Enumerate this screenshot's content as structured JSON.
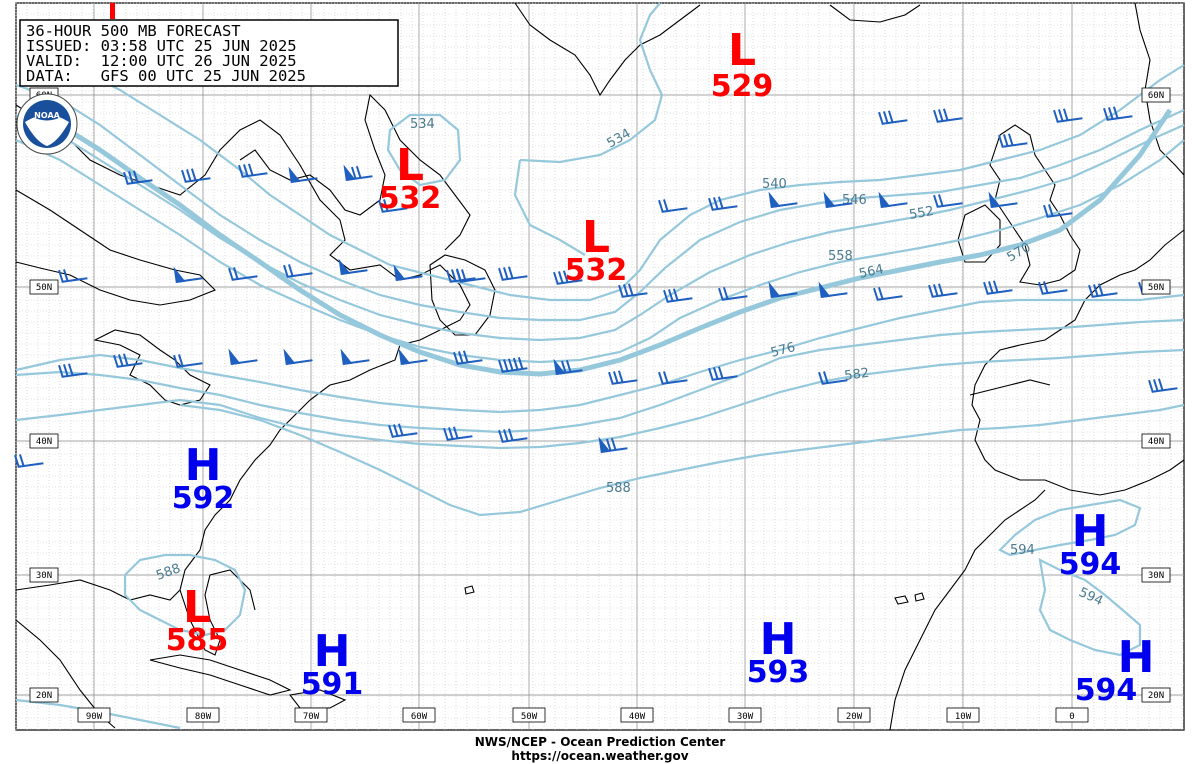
{
  "header": {
    "line1": "36-HOUR 500 MB FORECAST",
    "line2": "ISSUED: 03:58 UTC 25 JUN 2025",
    "line3": "VALID:  12:00 UTC 26 JUN 2025",
    "line4": "DATA:   GFS 00 UTC 25 JUN 2025"
  },
  "logo_text": "NOAA",
  "footer": {
    "agency": "NWS/NCEP - Ocean Prediction Center",
    "url": "https://ocean.weather.gov"
  },
  "lon_labels": [
    "90W",
    "80W",
    "70W",
    "60W",
    "50W",
    "40W",
    "30W",
    "20W",
    "10W",
    "0"
  ],
  "lat_labels": [
    "60N",
    "50N",
    "40N",
    "30N",
    "20N"
  ],
  "contour_labels": [
    "534",
    "534",
    "540",
    "546",
    "552",
    "558",
    "564",
    "570",
    "576",
    "582",
    "588",
    "588",
    "594",
    "594"
  ],
  "colors": {
    "contour": "#96c8dc",
    "contour_label": "#4a7a90",
    "low": "#ff0000",
    "high": "#0000ee",
    "barb": "#1f5fbf",
    "coast": "#000000"
  },
  "centers": [
    {
      "type": "L",
      "value": "529"
    },
    {
      "type": "L",
      "value": "532"
    },
    {
      "type": "L",
      "value": "532"
    },
    {
      "type": "H",
      "value": "592"
    },
    {
      "type": "L",
      "value": "585"
    },
    {
      "type": "H",
      "value": "591"
    },
    {
      "type": "H",
      "value": "593"
    },
    {
      "type": "H",
      "value": "594"
    },
    {
      "type": "H",
      "value": "594"
    }
  ]
}
